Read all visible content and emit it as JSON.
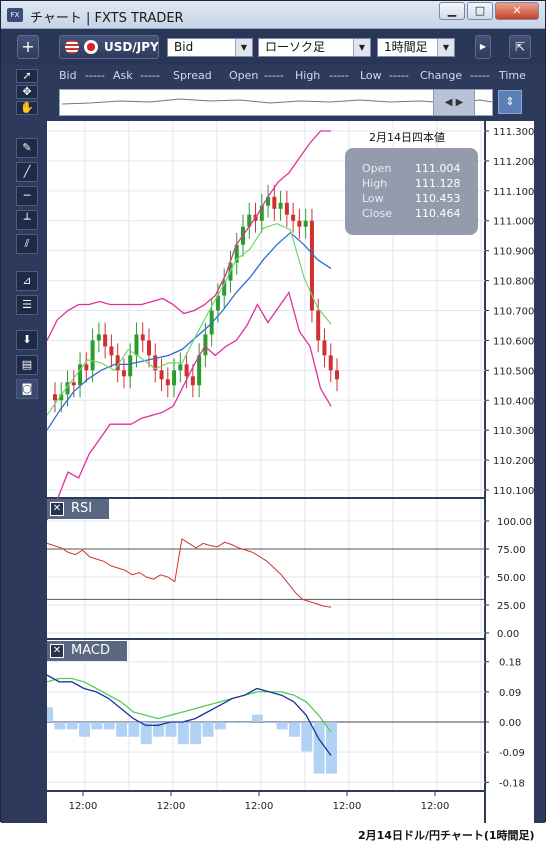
{
  "window": {
    "title": "チャート | FXTS TRADER",
    "app_icon": "FX",
    "minimize": "▁",
    "maximize": "□",
    "close": "✕"
  },
  "toolbar": {
    "add": "+",
    "symbol": "USD/JPY",
    "price_type": "Bid",
    "chart_type": "ローソク足",
    "timeframe": "1時間足",
    "scroll_right": "▶",
    "popout": "⇱"
  },
  "quote_header": [
    "Bid",
    "-----",
    "Ask",
    "-----",
    "Spread",
    "Open",
    "-----",
    "High",
    "-----",
    "Low",
    "-----",
    "Change",
    "-----",
    "Time"
  ],
  "tools": [
    "pointer-icon",
    "crosshair-icon",
    "hand-icon",
    "pen-icon",
    "trendline-icon",
    "hline-icon",
    "vline-icon",
    "channel-icon",
    "fibonacci-icon",
    "fib-lines-icon",
    "download-icon",
    "list-icon",
    "camera-icon"
  ],
  "navigator": {
    "handle": "◀ ▶",
    "button": "⇕"
  },
  "price_panel": {
    "date_label": "2月14日四本値",
    "ohlc": {
      "open_label": "Open",
      "open": "111.004",
      "high_label": "High",
      "high": "111.128",
      "low_label": "Low",
      "low": "110.453",
      "close_label": "Close",
      "close": "110.464"
    },
    "y_ticks": [
      "111.300",
      "111.200",
      "111.100",
      "111.000",
      "110.900",
      "110.800",
      "110.700",
      "110.600",
      "110.500",
      "110.400",
      "110.300",
      "110.200",
      "110.100"
    ]
  },
  "rsi_panel": {
    "title": "RSI",
    "close": "✕",
    "y_ticks": [
      "100.00",
      "75.00",
      "50.00",
      "25.00",
      "0.00"
    ]
  },
  "macd_panel": {
    "title": "MACD",
    "close": "✕",
    "y_ticks": [
      "0.18",
      "0.09",
      "0.00",
      "-0.09",
      "-0.18"
    ]
  },
  "x_ticks": [
    "12:00",
    "12:00",
    "12:00",
    "12:00",
    "12:00"
  ],
  "caption": "2月14日ドル/円チャート(1時間足)",
  "colors": {
    "up": "#2d9b2d",
    "down": "#d23030",
    "bollinger": "#e0309a",
    "ma_short": "#70d870",
    "ma_long": "#2a6fd0",
    "rsi": "#d83030",
    "macd": "#2030a0",
    "signal": "#50d050",
    "hist": "#a8cdf3"
  },
  "chart_data": [
    {
      "type": "candlestick",
      "title": "2月14日四本値",
      "ylim": [
        110.08,
        111.32
      ],
      "ohlc_summary": {
        "open": 111.004,
        "high": 111.128,
        "low": 110.453,
        "close": 110.464
      },
      "close": [
        110.4,
        110.42,
        110.46,
        110.45,
        110.52,
        110.5,
        110.6,
        110.62,
        110.58,
        110.55,
        110.5,
        110.48,
        110.55,
        110.62,
        110.6,
        110.55,
        110.5,
        110.47,
        110.45,
        110.5,
        110.52,
        110.48,
        110.45,
        110.55,
        110.62,
        110.7,
        110.75,
        110.8,
        110.86,
        110.92,
        110.98,
        111.02,
        111.0,
        111.05,
        111.08,
        111.04,
        111.06,
        111.02,
        111.0,
        110.98,
        111.0,
        110.7,
        110.6,
        110.55,
        110.5,
        110.47
      ],
      "bollinger_upper": [
        110.6,
        110.67,
        110.7,
        110.72,
        110.72,
        110.73,
        110.72,
        110.72,
        110.72,
        110.72,
        110.73,
        110.74,
        110.72,
        110.69,
        110.7,
        110.72,
        110.75,
        110.82,
        110.92,
        110.97,
        111.02,
        111.08,
        111.13,
        111.16,
        111.21,
        111.26,
        111.3,
        111.3
      ],
      "sma_long": [
        110.3,
        110.37,
        110.43,
        110.47,
        110.5,
        110.52,
        110.52,
        110.53,
        110.54,
        110.55,
        110.57,
        110.61,
        110.65,
        110.7,
        110.76,
        110.81,
        110.87,
        110.92,
        110.96,
        110.92,
        110.87,
        110.84
      ]
    },
    {
      "type": "line",
      "title": "RSI",
      "ylim": [
        0,
        100
      ],
      "guides": [
        75,
        30
      ],
      "values": [
        80,
        78,
        76,
        72,
        70,
        74,
        68,
        66,
        64,
        60,
        58,
        56,
        52,
        54,
        50,
        48,
        52,
        50,
        46,
        84,
        80,
        76,
        80,
        78,
        77,
        81,
        79,
        76,
        74,
        72,
        68,
        64,
        58,
        52,
        44,
        36,
        30,
        28,
        26,
        24,
        23
      ]
    },
    {
      "type": "line",
      "title": "MACD",
      "ylim": [
        -0.2,
        0.2
      ],
      "series": [
        {
          "name": "",
          "values": [
            0.14,
            0.12,
            0.12,
            0.1,
            0.09,
            0.07,
            0.04,
            0.01,
            -0.01,
            -0.01,
            0.0,
            0.0,
            0.01,
            0.03,
            0.05,
            0.07,
            0.08,
            0.1,
            0.09,
            0.08,
            0.06,
            0.02,
            -0.05,
            -0.1
          ]
        },
        {
          "name": "",
          "values": [
            0.12,
            0.13,
            0.13,
            0.12,
            0.1,
            0.08,
            0.06,
            0.03,
            0.02,
            0.01,
            0.02,
            0.03,
            0.04,
            0.05,
            0.06,
            0.07,
            0.08,
            0.09,
            0.09,
            0.09,
            0.08,
            0.06,
            0.02,
            -0.03
          ]
        }
      ]
    }
  ]
}
